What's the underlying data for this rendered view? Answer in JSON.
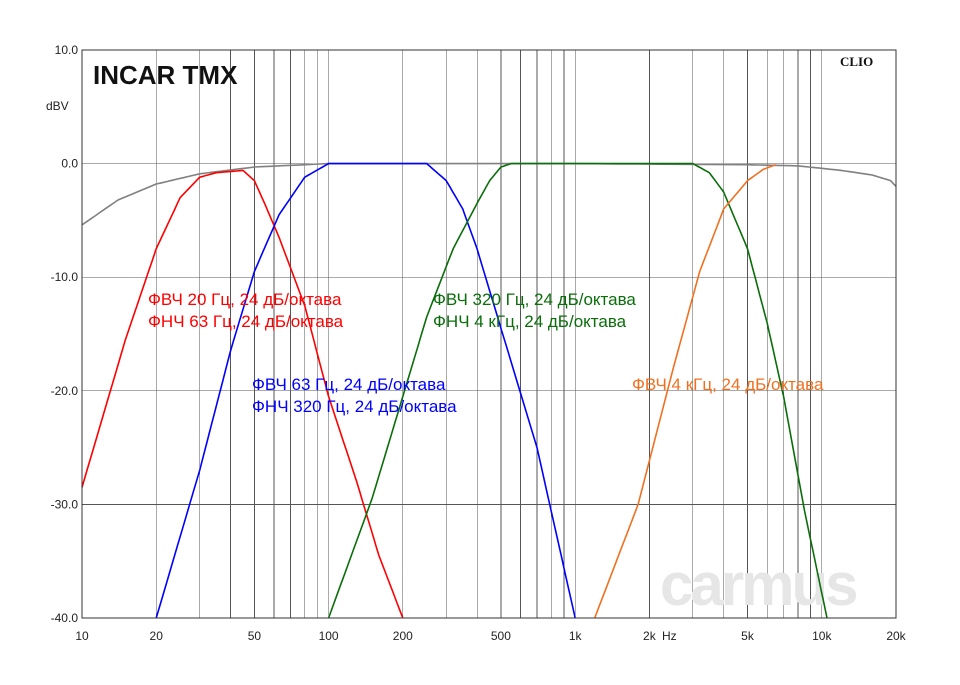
{
  "chart_data": {
    "type": "line",
    "title": "INCAR TMX",
    "software_label": "CLIO",
    "watermark": "carmus",
    "x_scale": "log",
    "xlim": [
      10,
      20000
    ],
    "ylim": [
      -40,
      10
    ],
    "ylabel": "dBV",
    "xlabel": "Hz",
    "grid": true,
    "x_ticks": [
      {
        "value": 10,
        "label": "10"
      },
      {
        "value": 20,
        "label": "20"
      },
      {
        "value": 50,
        "label": "50"
      },
      {
        "value": 100,
        "label": "100"
      },
      {
        "value": 200,
        "label": "200"
      },
      {
        "value": 500,
        "label": "500"
      },
      {
        "value": 1000,
        "label": "1k"
      },
      {
        "value": 2000,
        "label": "2k"
      },
      {
        "value": 5000,
        "label": "5k"
      },
      {
        "value": 10000,
        "label": "10k"
      },
      {
        "value": 20000,
        "label": "20k"
      }
    ],
    "y_ticks": [
      {
        "value": 10,
        "label": "10.0"
      },
      {
        "value": 0,
        "label": "0.0"
      },
      {
        "value": -10,
        "label": "-10.0"
      },
      {
        "value": -20,
        "label": "-20.0"
      },
      {
        "value": -30,
        "label": "-30.0"
      },
      {
        "value": -40,
        "label": "-40.0"
      }
    ],
    "series": [
      {
        "color": "#808080",
        "points": [
          [
            10,
            -5.4
          ],
          [
            14,
            -3.2
          ],
          [
            20,
            -1.8
          ],
          [
            30,
            -0.9
          ],
          [
            50,
            -0.3
          ],
          [
            100,
            0.0
          ],
          [
            1000,
            0.0
          ],
          [
            5000,
            -0.1
          ],
          [
            8000,
            -0.2
          ],
          [
            12000,
            -0.6
          ],
          [
            16000,
            -1.0
          ],
          [
            19000,
            -1.5
          ],
          [
            20000,
            -2.0
          ]
        ]
      },
      {
        "color": "#ff0000",
        "points": [
          [
            10,
            -28.5
          ],
          [
            15,
            -15.5
          ],
          [
            20,
            -7.5
          ],
          [
            25,
            -3.0
          ],
          [
            30,
            -1.2
          ],
          [
            35,
            -0.8
          ],
          [
            45,
            -0.6
          ],
          [
            50,
            -1.5
          ],
          [
            55,
            -3.5
          ],
          [
            63,
            -6.5
          ],
          [
            80,
            -12.5
          ],
          [
            100,
            -20.5
          ],
          [
            130,
            -28.0
          ],
          [
            160,
            -34.5
          ],
          [
            200,
            -40
          ]
        ]
      },
      {
        "color": "#0000ff",
        "points": [
          [
            20,
            -40
          ],
          [
            30,
            -27.0
          ],
          [
            40,
            -16.5
          ],
          [
            50,
            -9.5
          ],
          [
            63,
            -4.5
          ],
          [
            80,
            -1.2
          ],
          [
            100,
            0.0
          ],
          [
            250,
            0.0
          ],
          [
            300,
            -1.5
          ],
          [
            350,
            -4.0
          ],
          [
            400,
            -7.5
          ],
          [
            500,
            -14.5
          ],
          [
            700,
            -25.0
          ],
          [
            1000,
            -40
          ]
        ]
      },
      {
        "color": "#0a6e0a",
        "points": [
          [
            100,
            -40
          ],
          [
            150,
            -29.5
          ],
          [
            200,
            -20.5
          ],
          [
            250,
            -13.5
          ],
          [
            320,
            -7.5
          ],
          [
            400,
            -3.5
          ],
          [
            450,
            -1.5
          ],
          [
            500,
            -0.3
          ],
          [
            550,
            0.0
          ],
          [
            3000,
            0.0
          ],
          [
            3500,
            -0.8
          ],
          [
            4000,
            -2.5
          ],
          [
            5000,
            -7.5
          ],
          [
            6000,
            -14.0
          ],
          [
            7000,
            -20.5
          ],
          [
            8500,
            -30.5
          ],
          [
            10500,
            -40
          ]
        ]
      },
      {
        "color": "#f07020",
        "points": [
          [
            1200,
            -40
          ],
          [
            1800,
            -30.0
          ],
          [
            2500,
            -18.0
          ],
          [
            3200,
            -9.5
          ],
          [
            4000,
            -4.0
          ],
          [
            5000,
            -1.5
          ],
          [
            5800,
            -0.5
          ],
          [
            6500,
            -0.1
          ]
        ]
      }
    ],
    "annotations": [
      {
        "color": "#ff0000",
        "lines": [
          "ФВЧ 20 Гц, 24 дБ/октава",
          "ФНЧ 63 Гц, 24 дБ/октава"
        ]
      },
      {
        "color": "#0a6e0a",
        "lines": [
          "ФВЧ 320 Гц, 24 дБ/октава",
          "ФНЧ 4 кГц, 24 дБ/октава"
        ]
      },
      {
        "color": "#0000ff",
        "lines": [
          "ФВЧ 63 Гц, 24 дБ/октава",
          "ФНЧ 320 Гц, 24 дБ/октава"
        ]
      },
      {
        "color": "#f07020",
        "lines": [
          "ФВЧ 4 кГц, 24 дБ/октава"
        ]
      }
    ]
  }
}
